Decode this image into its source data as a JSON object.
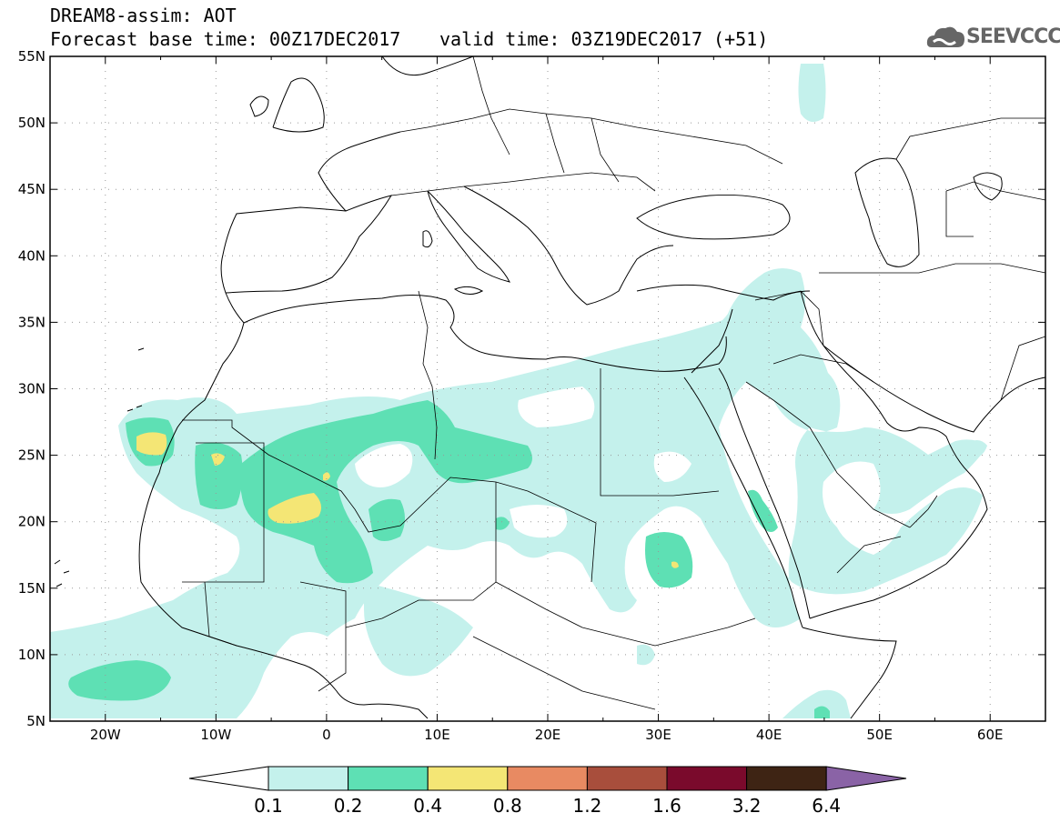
{
  "header": {
    "title": "DREAM8-assim: AOT",
    "base_time": "Forecast base time: 00Z17DEC2017",
    "valid_time": "valid time: 03Z19DEC2017 (+51)",
    "logo_text": "SEEVCCC"
  },
  "map": {
    "lon_range": [
      -25,
      65
    ],
    "lat_range": [
      5,
      55
    ],
    "lat_ticks": [
      "55N",
      "50N",
      "45N",
      "40N",
      "35N",
      "30N",
      "25N",
      "20N",
      "15N",
      "10N",
      "5N"
    ],
    "lon_ticks": [
      "20W",
      "10W",
      "0",
      "10E",
      "20E",
      "30E",
      "40E",
      "50E",
      "60E"
    ]
  },
  "colorbar": {
    "labels": [
      "0.1",
      "0.2",
      "0.4",
      "0.8",
      "1.2",
      "1.6",
      "3.2",
      "6.4"
    ],
    "colors": [
      "#ffffff",
      "#c4f1ec",
      "#5ee0b4",
      "#f4e675",
      "#e88a62",
      "#a84e3c",
      "#7a0a2c",
      "#3e2414",
      "#8a63a6"
    ]
  }
}
